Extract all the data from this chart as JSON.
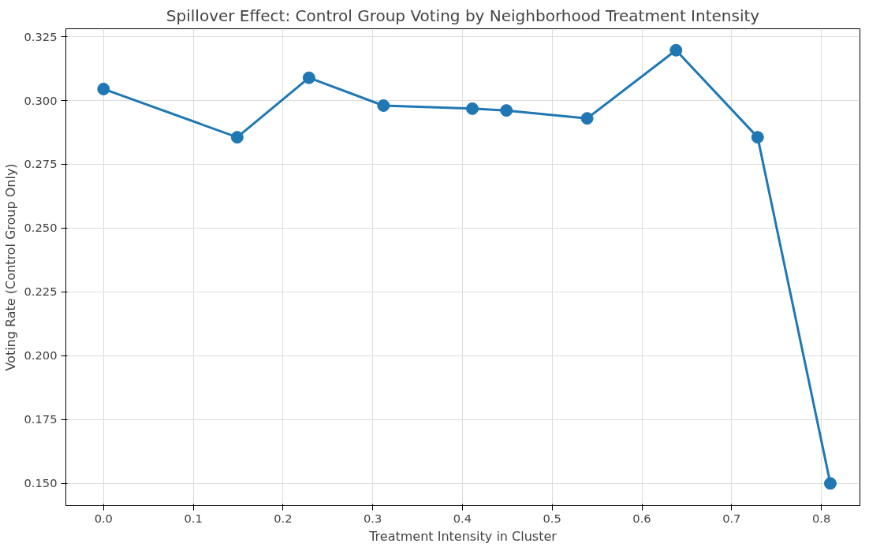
{
  "chart_data": {
    "type": "line",
    "title": "Spillover Effect: Control Group Voting by Neighborhood Treatment Intensity",
    "xlabel": "Treatment Intensity in Cluster",
    "ylabel": "Voting Rate (Control Group Only)",
    "x": [
      0.0,
      0.149,
      0.229,
      0.312,
      0.411,
      0.449,
      0.539,
      0.638,
      0.729,
      0.81
    ],
    "series": [
      {
        "color": "#1f77b4",
        "values": [
          0.3045,
          0.2856,
          0.3089,
          0.298,
          0.2968,
          0.2961,
          0.293,
          0.3197,
          0.2856,
          0.15
        ]
      }
    ],
    "xlim": [
      -0.042,
      0.843
    ],
    "ylim": [
      0.1413,
      0.3281
    ],
    "xticks": [
      {
        "value": 0,
        "label": "0.0"
      },
      0.1,
      0.2,
      0.3,
      0.4,
      0.5,
      0.6,
      0.7,
      0.8
    ],
    "yticks": [
      {
        "value": 0.15,
        "label": "0.150"
      },
      0.175,
      {
        "value": 0.2,
        "label": "0.200"
      },
      0.225,
      {
        "value": 0.25,
        "label": "0.250"
      },
      0.275,
      {
        "value": 0.3,
        "label": "0.300"
      },
      0.325
    ],
    "grid": true,
    "marker": "circle",
    "line_style": "solid"
  }
}
